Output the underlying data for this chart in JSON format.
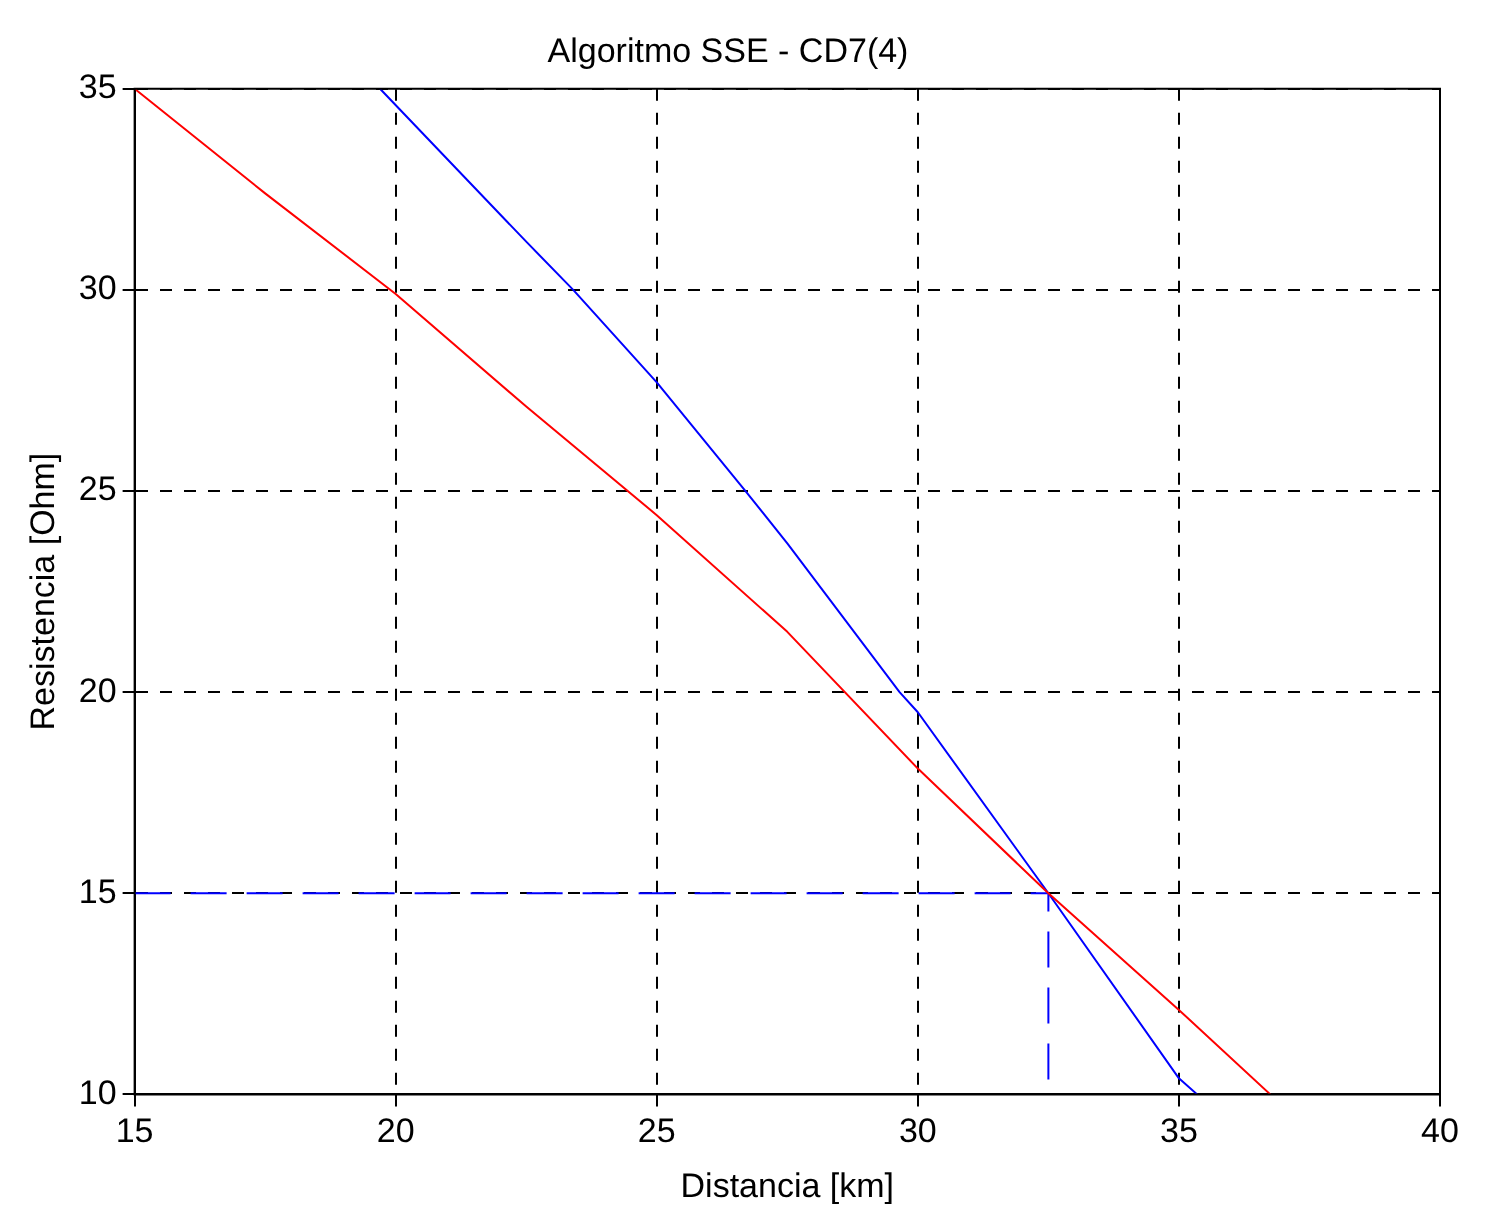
{
  "chart_data": {
    "type": "line",
    "title": "Algoritmo SSE - CD7(4)",
    "xlabel": "Distancia [km]",
    "ylabel": "Resistencia [Ohm]",
    "xlim": [
      15,
      40
    ],
    "xticks": [
      15,
      20,
      25,
      30,
      35,
      40
    ],
    "ylim": [
      10,
      35
    ],
    "yticks": [
      10,
      15,
      20,
      25,
      30,
      35
    ],
    "grid": true,
    "legend": false,
    "marker": "none",
    "series": [
      {
        "color": "#ff0000",
        "line_style": "solid",
        "x": [
          15,
          17.5,
          20,
          22.5,
          25,
          27.5,
          30,
          32.5,
          35,
          36.75
        ],
        "values": [
          35,
          32.4,
          29.9,
          27.1,
          24.4,
          21.5,
          18.1,
          15,
          12.1,
          10
        ]
      },
      {
        "color": "#0000ff",
        "line_style": "solid",
        "x": [
          19.7,
          22.5,
          23.4,
          25,
          26.7,
          27.5,
          29.65,
          30,
          32.5,
          35,
          35.35
        ],
        "values": [
          35,
          31.2,
          30,
          27.7,
          25,
          23.7,
          20,
          19.5,
          15,
          10.4,
          10
        ]
      },
      {
        "color": "#0000ff",
        "line_style": "dashed",
        "x": [
          15,
          32.5,
          32.5
        ],
        "values": [
          15,
          15,
          10
        ]
      }
    ]
  }
}
